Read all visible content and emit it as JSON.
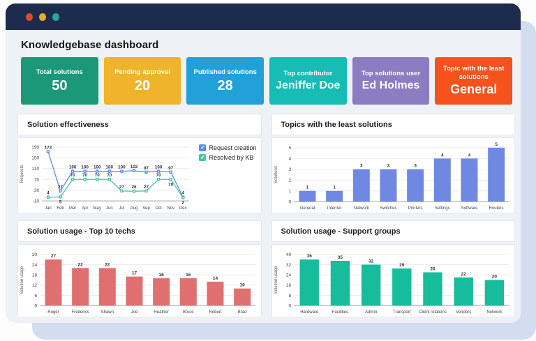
{
  "window": {
    "dots": [
      {
        "name": "close",
        "color": "#e04b2b"
      },
      {
        "name": "minimize",
        "color": "#e9ab2e"
      },
      {
        "name": "maximize",
        "color": "#2aa79b"
      }
    ]
  },
  "header": {
    "title": "Knowledgebase dashboard"
  },
  "kpis": [
    {
      "label": "Total solutions",
      "value": "50",
      "color": "#1a9877"
    },
    {
      "label": "Pending approval",
      "value": "20",
      "color": "#f0b32c"
    },
    {
      "label": "Published solutions",
      "value": "28",
      "color": "#22a0d8"
    },
    {
      "label": "Top contributor",
      "value": "Jeniffer Doe",
      "color": "#17bcb4"
    },
    {
      "label": "Top solutions user",
      "value": "Ed Holmes",
      "color": "#8c7cc2"
    },
    {
      "label": "Topic with the least solutions",
      "value": "General",
      "color": "#f5521d"
    }
  ],
  "chart_data": [
    {
      "type": "line",
      "title": "Solution effectiveness",
      "ylabel": "Requests",
      "yticks": [
        -10,
        30,
        70,
        110,
        150,
        190
      ],
      "categories": [
        "Jan",
        "Feb",
        "Mar",
        "Apr",
        "May",
        "Jun",
        "Jul",
        "Aug",
        "Sep",
        "Oct",
        "Nov",
        "Dec"
      ],
      "series": [
        {
          "name": "Request creation",
          "color": "#5b8dec",
          "values": [
            173,
            27,
            100,
            100,
            100,
            100,
            100,
            102,
            97,
            100,
            97,
            4
          ]
        },
        {
          "name": "Resolved by KB",
          "color": "#47c4a4",
          "values": [
            4,
            5,
            70,
            70,
            70,
            70,
            27,
            26,
            27,
            70,
            70,
            2
          ]
        }
      ],
      "legend_position": "right",
      "grid": true
    },
    {
      "type": "bar",
      "title": "Topics with the least solutions",
      "ylabel": "Solutions",
      "yticks": [
        0,
        1,
        2,
        3,
        4,
        5
      ],
      "categories": [
        "General",
        "Internet",
        "Network",
        "Switches",
        "Printers",
        "Settings",
        "Software",
        "Routers"
      ],
      "values": [
        1,
        1,
        3,
        3,
        3,
        4,
        4,
        5
      ],
      "color": "#6f88e2",
      "grid": true
    },
    {
      "type": "bar",
      "title": "Solution usage - Top 10 techs",
      "ylabel": "Solution usage",
      "yticks": [
        0,
        6,
        12,
        18,
        24,
        30
      ],
      "categories": [
        "Roger",
        "Frederics",
        "Shawn",
        "Joe",
        "Heather",
        "Bruce",
        "Robert",
        "Brad"
      ],
      "values": [
        27,
        22,
        22,
        17,
        16,
        16,
        14,
        10
      ],
      "color": "#e07070",
      "grid": true
    },
    {
      "type": "bar",
      "title": "Solution usage - Support groups",
      "ylabel": "Solution usage",
      "yticks": [
        0,
        8,
        16,
        24,
        32,
        40
      ],
      "categories": [
        "Hardware",
        "Facilities",
        "Admin",
        "Transport",
        "Client relations",
        "Vendors",
        "Network"
      ],
      "values": [
        36,
        35,
        32,
        29,
        26,
        22,
        20
      ],
      "color": "#16bc9c",
      "grid": true
    }
  ],
  "icons": {
    "legend_check": "✓"
  }
}
